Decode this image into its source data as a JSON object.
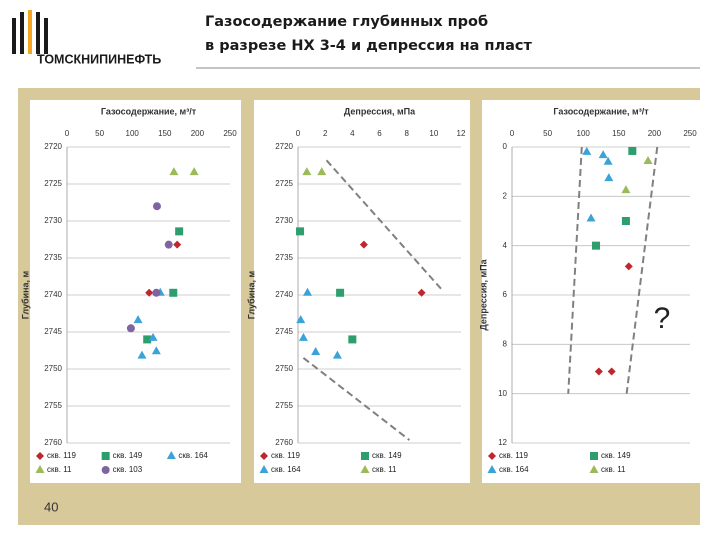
{
  "header": {
    "logo_text": "ТОМСКНИПИНЕФТЬ",
    "title_lines": [
      "Газосодержание глубинных проб",
      "в разрезе НХ 3-4 и депрессия на пласт"
    ]
  },
  "annotation": "?",
  "page_number": 40,
  "chart_data": [
    {
      "type": "scatter",
      "x_label": "Газосодержание, м³/т",
      "y_label": "Глубина, м",
      "xlim": [
        0,
        250
      ],
      "xticks": [
        0,
        50,
        100,
        150,
        200,
        250
      ],
      "xaxis_position": "top",
      "ylim": [
        2720,
        2760
      ],
      "yticks": [
        2720,
        2725,
        2730,
        2735,
        2740,
        2745,
        2750,
        2755,
        2760
      ],
      "y_inverted": true,
      "grid": true,
      "legend_columns": 3,
      "series": [
        {
          "name": "скв. 119",
          "color": "#c0272d",
          "marker": "diamond",
          "x": [
            126,
            169
          ],
          "y": [
            2739.7,
            2733.2
          ]
        },
        {
          "name": "скв. 149",
          "color": "#2e9e6e",
          "marker": "square",
          "x": [
            172,
            163,
            123
          ],
          "y": [
            2731.4,
            2739.7,
            2746
          ]
        },
        {
          "name": "скв. 164",
          "color": "#3ba3d8",
          "marker": "triangle",
          "x": [
            109,
            132,
            137,
            115,
            143
          ],
          "y": [
            2743.4,
            2745.8,
            2747.6,
            2748.2,
            2739.7
          ]
        },
        {
          "name": "скв. 11",
          "color": "#9bbb59",
          "marker": "triangle",
          "x": [
            164,
            195
          ],
          "y": [
            2723.4,
            2723.4
          ]
        },
        {
          "name": "скв. 103",
          "color": "#8064a2",
          "marker": "circle",
          "x": [
            138,
            156,
            98,
            137
          ],
          "y": [
            2728,
            2733.2,
            2744.5,
            2739.7
          ]
        }
      ]
    },
    {
      "type": "scatter",
      "x_label": "Депрессия, мПа",
      "y_label": "Глубина, м",
      "xlim": [
        0,
        12
      ],
      "xticks": [
        0,
        2,
        4,
        6,
        8,
        10,
        12
      ],
      "xaxis_position": "top",
      "ylim": [
        2720,
        2760
      ],
      "yticks": [
        2720,
        2725,
        2730,
        2735,
        2740,
        2745,
        2750,
        2755,
        2760
      ],
      "y_inverted": true,
      "grid": true,
      "legend_columns": 2,
      "series": [
        {
          "name": "скв. 119",
          "color": "#c0272d",
          "marker": "diamond",
          "x": [
            4.85,
            9.1
          ],
          "y": [
            2733.2,
            2739.7
          ]
        },
        {
          "name": "скв. 149",
          "color": "#2e9e6e",
          "marker": "square",
          "x": [
            0.15,
            3.1,
            4.0
          ],
          "y": [
            2731.4,
            2739.7,
            2746
          ]
        },
        {
          "name": "скв. 164",
          "color": "#3ba3d8",
          "marker": "triangle",
          "x": [
            0.7,
            0.2,
            0.4,
            1.3,
            2.9
          ],
          "y": [
            2739.7,
            2743.4,
            2745.8,
            2747.7,
            2748.2
          ]
        },
        {
          "name": "скв. 11",
          "color": "#9bbb59",
          "marker": "triangle",
          "x": [
            0.65,
            1.75
          ],
          "y": [
            2723.4,
            2723.4
          ]
        }
      ],
      "trend_color": "#808080",
      "trend_lines": [
        {
          "x": [
            2.1,
            10.6
          ],
          "y": [
            2721.8,
            2739.3
          ]
        },
        {
          "x": [
            0.4,
            8.2
          ],
          "y": [
            2748.5,
            2759.6
          ]
        }
      ]
    },
    {
      "type": "scatter",
      "x_label": "Газосодержание, м³/т",
      "y_label": "Депрессия, мПа",
      "xlim": [
        0,
        250
      ],
      "xticks": [
        0,
        50,
        100,
        150,
        200,
        250
      ],
      "xaxis_position": "top",
      "ylim": [
        0,
        12
      ],
      "yticks": [
        0,
        2,
        4,
        6,
        8,
        10,
        12
      ],
      "y_inverted": true,
      "grid": true,
      "legend_columns": 2,
      "series": [
        {
          "name": "скв. 119",
          "color": "#c0272d",
          "marker": "diamond",
          "x": [
            164,
            122,
            140
          ],
          "y": [
            4.84,
            9.1,
            9.1
          ]
        },
        {
          "name": "скв. 149",
          "color": "#2e9e6e",
          "marker": "square",
          "x": [
            169,
            160,
            118
          ],
          "y": [
            0.16,
            3.0,
            4.0
          ]
        },
        {
          "name": "скв. 164",
          "color": "#3ba3d8",
          "marker": "triangle",
          "x": [
            105,
            128,
            135,
            136,
            111
          ],
          "y": [
            0.2,
            0.33,
            0.6,
            1.26,
            2.9
          ]
        },
        {
          "name": "скв. 11",
          "color": "#9bbb59",
          "marker": "triangle",
          "x": [
            191,
            160
          ],
          "y": [
            0.57,
            1.75
          ]
        }
      ],
      "trend_color": "#808080",
      "trend_lines": [
        {
          "x": [
            98,
            79
          ],
          "y": [
            0,
            10
          ]
        },
        {
          "x": [
            204,
            161
          ],
          "y": [
            0,
            10
          ]
        }
      ]
    }
  ]
}
